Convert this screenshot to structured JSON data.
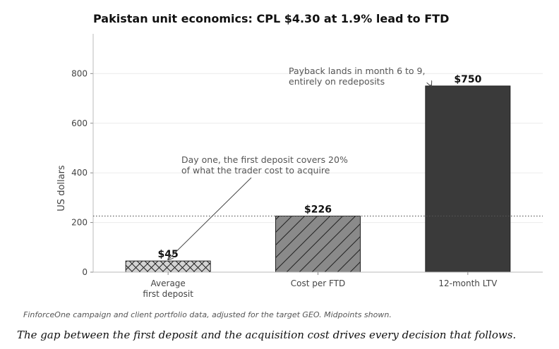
{
  "chart_data": {
    "type": "bar",
    "title": "Pakistan unit economics: CPL $4.30 at 1.9% lead to FTD",
    "ylabel": "US dollars",
    "xlabel": "",
    "ylim": [
      0,
      960
    ],
    "yticks": [
      0,
      200,
      400,
      600,
      800
    ],
    "grid": "horizontal",
    "categories": [
      "Average\nfirst deposit",
      "Cost per FTD",
      "12-month LTV"
    ],
    "values": [
      45,
      226,
      750
    ],
    "data_labels": [
      "$45",
      "$226",
      "$750"
    ],
    "bar_styles": [
      {
        "fill": "#d3d3d3",
        "hatch": "cross"
      },
      {
        "fill": "#8a8a8a",
        "hatch": "diagonal"
      },
      {
        "fill": "#3a3a3a",
        "hatch": "none"
      }
    ],
    "reference_line": {
      "y": 226,
      "style": "dotted"
    },
    "annotations": [
      {
        "text": "Day one, the first deposit covers 20%\nof what the trader cost to acquire",
        "target_category": 0,
        "target_value": 45
      },
      {
        "text": "Payback lands in month 6 to 9,\nentirely on redeposits",
        "target_category": 2,
        "target_value": 750
      }
    ]
  },
  "footer": {
    "source": "FinforceOne campaign and client portfolio data, adjusted for the target GEO. Midpoints shown.",
    "caption": "The gap between the first deposit and the acquisition cost drives every decision that follows."
  }
}
